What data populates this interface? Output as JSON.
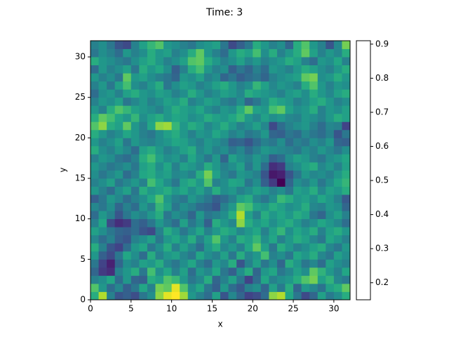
{
  "chart_data": {
    "type": "heatmap",
    "title": "Time: 3",
    "xlabel": "x",
    "ylabel": "y",
    "xlim": [
      0,
      32
    ],
    "ylim": [
      0,
      32
    ],
    "xticks": [
      0,
      5,
      10,
      15,
      20,
      25,
      30
    ],
    "yticks": [
      0,
      5,
      10,
      15,
      20,
      25,
      30
    ],
    "colormap": "viridis",
    "clim": [
      0.15,
      0.91
    ],
    "cticks": [
      0.2,
      0.3,
      0.4,
      0.5,
      0.6,
      0.7,
      0.8,
      0.9
    ],
    "z": [
      [
        0.62,
        0.82,
        0.48,
        0.35,
        0.38,
        0.33,
        0.45,
        0.52,
        0.78,
        0.88,
        0.91,
        0.8,
        0.55,
        0.48,
        0.42,
        0.58,
        0.35,
        0.5,
        0.4,
        0.3,
        0.33,
        0.42,
        0.78,
        0.82,
        0.6,
        0.45,
        0.32,
        0.4,
        0.58,
        0.46,
        0.52,
        0.62
      ],
      [
        0.7,
        0.55,
        0.42,
        0.5,
        0.38,
        0.45,
        0.6,
        0.48,
        0.75,
        0.72,
        0.88,
        0.7,
        0.52,
        0.6,
        0.45,
        0.38,
        0.55,
        0.42,
        0.36,
        0.48,
        0.52,
        0.4,
        0.58,
        0.46,
        0.62,
        0.4,
        0.55,
        0.5,
        0.44,
        0.58,
        0.62,
        0.72
      ],
      [
        0.48,
        0.52,
        0.6,
        0.42,
        0.55,
        0.4,
        0.38,
        0.62,
        0.58,
        0.7,
        0.66,
        0.55,
        0.45,
        0.5,
        0.62,
        0.4,
        0.48,
        0.58,
        0.45,
        0.3,
        0.42,
        0.6,
        0.48,
        0.52,
        0.55,
        0.62,
        0.7,
        0.75,
        0.58,
        0.64,
        0.5,
        0.46
      ],
      [
        0.4,
        0.28,
        0.25,
        0.48,
        0.55,
        0.62,
        0.45,
        0.68,
        0.52,
        0.6,
        0.48,
        0.58,
        0.42,
        0.55,
        0.5,
        0.6,
        0.45,
        0.38,
        0.52,
        0.62,
        0.4,
        0.55,
        0.6,
        0.45,
        0.5,
        0.58,
        0.52,
        0.72,
        0.64,
        0.55,
        0.48,
        0.6
      ],
      [
        0.45,
        0.3,
        0.22,
        0.4,
        0.52,
        0.48,
        0.58,
        0.55,
        0.62,
        0.5,
        0.45,
        0.52,
        0.6,
        0.48,
        0.42,
        0.55,
        0.5,
        0.62,
        0.35,
        0.48,
        0.58,
        0.45,
        0.52,
        0.4,
        0.62,
        0.55,
        0.45,
        0.5,
        0.42,
        0.58,
        0.52,
        0.48
      ],
      [
        0.55,
        0.38,
        0.32,
        0.45,
        0.6,
        0.52,
        0.42,
        0.62,
        0.48,
        0.55,
        0.58,
        0.5,
        0.45,
        0.6,
        0.52,
        0.48,
        0.58,
        0.45,
        0.62,
        0.5,
        0.55,
        0.68,
        0.48,
        0.52,
        0.45,
        0.6,
        0.55,
        0.62,
        0.5,
        0.45,
        0.58,
        0.52
      ],
      [
        0.62,
        0.48,
        0.35,
        0.3,
        0.42,
        0.55,
        0.6,
        0.45,
        0.52,
        0.62,
        0.48,
        0.58,
        0.5,
        0.42,
        0.55,
        0.62,
        0.5,
        0.55,
        0.48,
        0.6,
        0.72,
        0.58,
        0.45,
        0.62,
        0.55,
        0.48,
        0.52,
        0.58,
        0.62,
        0.5,
        0.45,
        0.55
      ],
      [
        0.5,
        0.42,
        0.48,
        0.38,
        0.35,
        0.48,
        0.52,
        0.58,
        0.45,
        0.55,
        0.6,
        0.52,
        0.62,
        0.48,
        0.58,
        0.7,
        0.55,
        0.48,
        0.62,
        0.58,
        0.65,
        0.52,
        0.6,
        0.48,
        0.55,
        0.62,
        0.58,
        0.5,
        0.45,
        0.6,
        0.55,
        0.48
      ],
      [
        0.58,
        0.52,
        0.45,
        0.4,
        0.38,
        0.42,
        0.35,
        0.32,
        0.48,
        0.62,
        0.55,
        0.45,
        0.52,
        0.6,
        0.48,
        0.55,
        0.62,
        0.58,
        0.5,
        0.55,
        0.6,
        0.48,
        0.58,
        0.65,
        0.52,
        0.6,
        0.55,
        0.62,
        0.48,
        0.58,
        0.62,
        0.55
      ],
      [
        0.48,
        0.6,
        0.32,
        0.25,
        0.28,
        0.42,
        0.38,
        0.45,
        0.55,
        0.48,
        0.42,
        0.58,
        0.45,
        0.52,
        0.38,
        0.62,
        0.55,
        0.5,
        0.78,
        0.62,
        0.55,
        0.6,
        0.52,
        0.58,
        0.62,
        0.55,
        0.48,
        0.52,
        0.6,
        0.55,
        0.5,
        0.42
      ],
      [
        0.42,
        0.55,
        0.48,
        0.35,
        0.45,
        0.52,
        0.48,
        0.55,
        0.62,
        0.45,
        0.52,
        0.48,
        0.4,
        0.55,
        0.45,
        0.48,
        0.52,
        0.62,
        0.82,
        0.58,
        0.48,
        0.62,
        0.55,
        0.6,
        0.55,
        0.62,
        0.58,
        0.45,
        0.4,
        0.52,
        0.58,
        0.48
      ],
      [
        0.5,
        0.45,
        0.52,
        0.4,
        0.48,
        0.42,
        0.55,
        0.48,
        0.65,
        0.58,
        0.45,
        0.52,
        0.48,
        0.42,
        0.4,
        0.35,
        0.48,
        0.55,
        0.72,
        0.68,
        0.58,
        0.55,
        0.62,
        0.58,
        0.52,
        0.55,
        0.62,
        0.5,
        0.48,
        0.55,
        0.52,
        0.4
      ],
      [
        0.38,
        0.45,
        0.55,
        0.5,
        0.42,
        0.48,
        0.52,
        0.6,
        0.7,
        0.55,
        0.48,
        0.45,
        0.55,
        0.5,
        0.45,
        0.38,
        0.42,
        0.48,
        0.58,
        0.62,
        0.5,
        0.45,
        0.52,
        0.66,
        0.62,
        0.55,
        0.58,
        0.52,
        0.6,
        0.55,
        0.48,
        0.36
      ],
      [
        0.55,
        0.48,
        0.42,
        0.52,
        0.58,
        0.45,
        0.62,
        0.55,
        0.58,
        0.62,
        0.55,
        0.6,
        0.52,
        0.58,
        0.5,
        0.62,
        0.52,
        0.55,
        0.48,
        0.52,
        0.58,
        0.55,
        0.48,
        0.52,
        0.45,
        0.58,
        0.55,
        0.62,
        0.5,
        0.58,
        0.55,
        0.62
      ],
      [
        0.48,
        0.52,
        0.58,
        0.45,
        0.5,
        0.55,
        0.48,
        0.68,
        0.6,
        0.52,
        0.45,
        0.58,
        0.62,
        0.55,
        0.7,
        0.48,
        0.52,
        0.6,
        0.58,
        0.45,
        0.52,
        0.38,
        0.28,
        0.15,
        0.4,
        0.52,
        0.48,
        0.55,
        0.45,
        0.52,
        0.6,
        0.65
      ],
      [
        0.52,
        0.45,
        0.5,
        0.55,
        0.42,
        0.48,
        0.6,
        0.62,
        0.55,
        0.58,
        0.5,
        0.52,
        0.48,
        0.62,
        0.75,
        0.58,
        0.5,
        0.45,
        0.55,
        0.52,
        0.48,
        0.35,
        0.2,
        0.22,
        0.35,
        0.45,
        0.55,
        0.5,
        0.52,
        0.48,
        0.55,
        0.62
      ],
      [
        0.55,
        0.5,
        0.45,
        0.48,
        0.52,
        0.45,
        0.58,
        0.62,
        0.52,
        0.6,
        0.48,
        0.58,
        0.55,
        0.5,
        0.62,
        0.55,
        0.48,
        0.52,
        0.58,
        0.45,
        0.55,
        0.42,
        0.25,
        0.28,
        0.48,
        0.52,
        0.58,
        0.62,
        0.5,
        0.55,
        0.48,
        0.58
      ],
      [
        0.48,
        0.55,
        0.52,
        0.45,
        0.42,
        0.48,
        0.62,
        0.68,
        0.58,
        0.52,
        0.55,
        0.48,
        0.6,
        0.52,
        0.45,
        0.55,
        0.4,
        0.58,
        0.52,
        0.48,
        0.55,
        0.5,
        0.38,
        0.42,
        0.52,
        0.58,
        0.55,
        0.48,
        0.45,
        0.52,
        0.55,
        0.6
      ],
      [
        0.62,
        0.52,
        0.48,
        0.55,
        0.5,
        0.42,
        0.58,
        0.62,
        0.55,
        0.48,
        0.52,
        0.58,
        0.62,
        0.5,
        0.55,
        0.48,
        0.52,
        0.45,
        0.5,
        0.42,
        0.48,
        0.55,
        0.52,
        0.5,
        0.48,
        0.45,
        0.52,
        0.48,
        0.55,
        0.5,
        0.45,
        0.52
      ],
      [
        0.55,
        0.48,
        0.52,
        0.58,
        0.45,
        0.55,
        0.5,
        0.48,
        0.52,
        0.55,
        0.6,
        0.58,
        0.52,
        0.48,
        0.55,
        0.52,
        0.48,
        0.38,
        0.4,
        0.35,
        0.42,
        0.48,
        0.45,
        0.52,
        0.42,
        0.48,
        0.45,
        0.52,
        0.48,
        0.55,
        0.4,
        0.38
      ],
      [
        0.62,
        0.55,
        0.48,
        0.52,
        0.6,
        0.55,
        0.48,
        0.45,
        0.52,
        0.58,
        0.62,
        0.55,
        0.48,
        0.55,
        0.52,
        0.6,
        0.55,
        0.48,
        0.52,
        0.45,
        0.48,
        0.55,
        0.4,
        0.38,
        0.45,
        0.42,
        0.5,
        0.45,
        0.42,
        0.48,
        0.35,
        0.45
      ],
      [
        0.7,
        0.78,
        0.62,
        0.58,
        0.72,
        0.55,
        0.48,
        0.6,
        0.78,
        0.8,
        0.65,
        0.55,
        0.62,
        0.58,
        0.5,
        0.55,
        0.62,
        0.55,
        0.48,
        0.52,
        0.58,
        0.5,
        0.32,
        0.42,
        0.48,
        0.52,
        0.55,
        0.48,
        0.42,
        0.5,
        0.48,
        0.3
      ],
      [
        0.62,
        0.72,
        0.68,
        0.6,
        0.55,
        0.65,
        0.52,
        0.58,
        0.62,
        0.55,
        0.6,
        0.58,
        0.52,
        0.55,
        0.62,
        0.58,
        0.55,
        0.6,
        0.65,
        0.55,
        0.5,
        0.58,
        0.52,
        0.55,
        0.5,
        0.48,
        0.55,
        0.52,
        0.48,
        0.55,
        0.62,
        0.58
      ],
      [
        0.55,
        0.48,
        0.62,
        0.7,
        0.65,
        0.58,
        0.55,
        0.52,
        0.48,
        0.55,
        0.62,
        0.58,
        0.55,
        0.6,
        0.52,
        0.48,
        0.55,
        0.52,
        0.62,
        0.72,
        0.58,
        0.55,
        0.68,
        0.72,
        0.58,
        0.52,
        0.55,
        0.62,
        0.48,
        0.55,
        0.52,
        0.58
      ],
      [
        0.48,
        0.55,
        0.52,
        0.58,
        0.45,
        0.5,
        0.55,
        0.48,
        0.52,
        0.58,
        0.55,
        0.62,
        0.48,
        0.52,
        0.58,
        0.55,
        0.48,
        0.45,
        0.52,
        0.4,
        0.45,
        0.52,
        0.62,
        0.58,
        0.55,
        0.48,
        0.52,
        0.58,
        0.62,
        0.55,
        0.48,
        0.52
      ],
      [
        0.42,
        0.52,
        0.55,
        0.48,
        0.58,
        0.62,
        0.55,
        0.52,
        0.58,
        0.55,
        0.48,
        0.52,
        0.62,
        0.55,
        0.48,
        0.52,
        0.58,
        0.55,
        0.5,
        0.62,
        0.58,
        0.55,
        0.52,
        0.48,
        0.55,
        0.58,
        0.52,
        0.62,
        0.55,
        0.5,
        0.58,
        0.62
      ],
      [
        0.48,
        0.55,
        0.45,
        0.58,
        0.68,
        0.52,
        0.48,
        0.55,
        0.62,
        0.45,
        0.52,
        0.58,
        0.55,
        0.48,
        0.52,
        0.58,
        0.62,
        0.55,
        0.48,
        0.52,
        0.65,
        0.58,
        0.5,
        0.55,
        0.52,
        0.48,
        0.62,
        0.7,
        0.55,
        0.48,
        0.55,
        0.52
      ],
      [
        0.55,
        0.48,
        0.52,
        0.45,
        0.72,
        0.55,
        0.58,
        0.52,
        0.48,
        0.45,
        0.4,
        0.55,
        0.52,
        0.58,
        0.48,
        0.52,
        0.4,
        0.45,
        0.38,
        0.42,
        0.45,
        0.4,
        0.48,
        0.52,
        0.55,
        0.58,
        0.72,
        0.75,
        0.52,
        0.55,
        0.62,
        0.55
      ],
      [
        0.42,
        0.55,
        0.48,
        0.52,
        0.58,
        0.45,
        0.62,
        0.55,
        0.6,
        0.52,
        0.38,
        0.48,
        0.62,
        0.68,
        0.55,
        0.48,
        0.52,
        0.38,
        0.45,
        0.4,
        0.48,
        0.42,
        0.55,
        0.52,
        0.48,
        0.55,
        0.62,
        0.58,
        0.52,
        0.48,
        0.55,
        0.62
      ],
      [
        0.62,
        0.55,
        0.52,
        0.48,
        0.45,
        0.52,
        0.58,
        0.62,
        0.55,
        0.48,
        0.52,
        0.58,
        0.7,
        0.72,
        0.62,
        0.55,
        0.48,
        0.52,
        0.58,
        0.5,
        0.55,
        0.48,
        0.52,
        0.55,
        0.62,
        0.58,
        0.48,
        0.42,
        0.55,
        0.52,
        0.6,
        0.48
      ],
      [
        0.45,
        0.52,
        0.48,
        0.42,
        0.55,
        0.48,
        0.52,
        0.62,
        0.55,
        0.58,
        0.48,
        0.52,
        0.62,
        0.72,
        0.55,
        0.48,
        0.42,
        0.55,
        0.62,
        0.58,
        0.68,
        0.52,
        0.62,
        0.48,
        0.55,
        0.62,
        0.72,
        0.58,
        0.48,
        0.55,
        0.5,
        0.62
      ],
      [
        0.48,
        0.52,
        0.45,
        0.35,
        0.32,
        0.48,
        0.58,
        0.65,
        0.7,
        0.55,
        0.52,
        0.48,
        0.45,
        0.52,
        0.55,
        0.58,
        0.45,
        0.32,
        0.38,
        0.45,
        0.62,
        0.55,
        0.48,
        0.52,
        0.4,
        0.62,
        0.7,
        0.55,
        0.48,
        0.35,
        0.5,
        0.75
      ]
    ]
  }
}
